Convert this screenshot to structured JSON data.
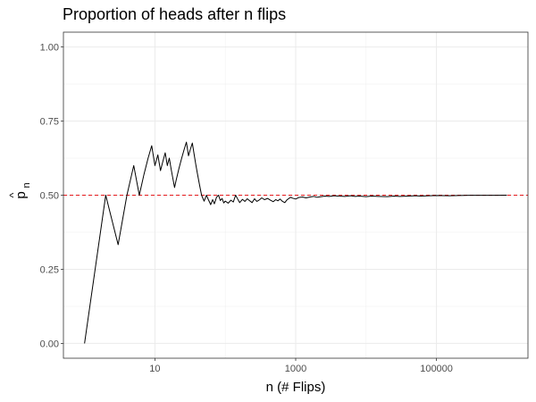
{
  "chart_data": {
    "type": "line",
    "title": "Proportion of heads after n flips",
    "xlabel": "n (# Flips)",
    "ylabel": {
      "base": "p",
      "hat": "^",
      "subscript": "n"
    },
    "x_scale": "log10",
    "xlim": [
      1,
      1000000
    ],
    "ylim": [
      0,
      1
    ],
    "x_ticks": [
      {
        "value": 10,
        "label": "10"
      },
      {
        "value": 1000,
        "label": "1000"
      },
      {
        "value": 100000,
        "label": "100000"
      }
    ],
    "y_ticks": [
      {
        "value": 0,
        "label": "0.00"
      },
      {
        "value": 0.25,
        "label": "0.25"
      },
      {
        "value": 0.5,
        "label": "0.50"
      },
      {
        "value": 0.75,
        "label": "0.75"
      },
      {
        "value": 1,
        "label": "1.00"
      }
    ],
    "grid": true,
    "reference_line": {
      "y": 0.5,
      "style": "dashed",
      "color": "#e41a1c"
    },
    "line_color": "#000000",
    "series": [
      {
        "points": [
          [
            1,
            0
          ],
          [
            2,
            0.5
          ],
          [
            3,
            0.333
          ],
          [
            4,
            0.5
          ],
          [
            5,
            0.6
          ],
          [
            6,
            0.5
          ],
          [
            7,
            0.571
          ],
          [
            8,
            0.625
          ],
          [
            9,
            0.667
          ],
          [
            10,
            0.6
          ],
          [
            11,
            0.636
          ],
          [
            12,
            0.583
          ],
          [
            13,
            0.615
          ],
          [
            14,
            0.643
          ],
          [
            15,
            0.6
          ],
          [
            16,
            0.625
          ],
          [
            17,
            0.588
          ],
          [
            18,
            0.556
          ],
          [
            19,
            0.526
          ],
          [
            20,
            0.55
          ],
          [
            22,
            0.591
          ],
          [
            24,
            0.625
          ],
          [
            26,
            0.654
          ],
          [
            28,
            0.679
          ],
          [
            30,
            0.633
          ],
          [
            32,
            0.656
          ],
          [
            34,
            0.676
          ],
          [
            36,
            0.639
          ],
          [
            38,
            0.605
          ],
          [
            40,
            0.575
          ],
          [
            43,
            0.535
          ],
          [
            46,
            0.5
          ],
          [
            50,
            0.48
          ],
          [
            54,
            0.5
          ],
          [
            58,
            0.483
          ],
          [
            62,
            0.468
          ],
          [
            66,
            0.485
          ],
          [
            70,
            0.471
          ],
          [
            75,
            0.493
          ],
          [
            80,
            0.5
          ],
          [
            85,
            0.482
          ],
          [
            90,
            0.489
          ],
          [
            95,
            0.474
          ],
          [
            100,
            0.48
          ],
          [
            110,
            0.473
          ],
          [
            120,
            0.483
          ],
          [
            130,
            0.477
          ],
          [
            140,
            0.5
          ],
          [
            150,
            0.487
          ],
          [
            160,
            0.475
          ],
          [
            175,
            0.486
          ],
          [
            190,
            0.479
          ],
          [
            205,
            0.488
          ],
          [
            220,
            0.482
          ],
          [
            240,
            0.475
          ],
          [
            260,
            0.488
          ],
          [
            280,
            0.479
          ],
          [
            300,
            0.483
          ],
          [
            330,
            0.491
          ],
          [
            360,
            0.485
          ],
          [
            400,
            0.489
          ],
          [
            440,
            0.483
          ],
          [
            480,
            0.478
          ],
          [
            520,
            0.485
          ],
          [
            560,
            0.481
          ],
          [
            600,
            0.487
          ],
          [
            650,
            0.479
          ],
          [
            700,
            0.475
          ],
          [
            750,
            0.484
          ],
          [
            800,
            0.489
          ],
          [
            850,
            0.493
          ],
          [
            900,
            0.49
          ],
          [
            1000,
            0.487
          ],
          [
            1100,
            0.492
          ],
          [
            1250,
            0.494
          ],
          [
            1400,
            0.491
          ],
          [
            1600,
            0.494
          ],
          [
            1800,
            0.496
          ],
          [
            2000,
            0.493
          ],
          [
            2300,
            0.495
          ],
          [
            2600,
            0.497
          ],
          [
            3000,
            0.496
          ],
          [
            3500,
            0.498
          ],
          [
            4000,
            0.497
          ],
          [
            5000,
            0.496
          ],
          [
            6000,
            0.498
          ],
          [
            7000,
            0.496
          ],
          [
            8000,
            0.497
          ],
          [
            10000,
            0.495
          ],
          [
            12000,
            0.497
          ],
          [
            15000,
            0.496
          ],
          [
            20000,
            0.495
          ],
          [
            25000,
            0.497
          ],
          [
            30000,
            0.496
          ],
          [
            40000,
            0.497
          ],
          [
            50000,
            0.498
          ],
          [
            60000,
            0.497
          ],
          [
            80000,
            0.498
          ],
          [
            100000,
            0.499
          ],
          [
            150000,
            0.498
          ],
          [
            200000,
            0.499
          ],
          [
            300000,
            0.4995
          ],
          [
            500000,
            0.4997
          ],
          [
            700000,
            0.4998
          ],
          [
            1000000,
            0.4999
          ]
        ]
      }
    ]
  }
}
